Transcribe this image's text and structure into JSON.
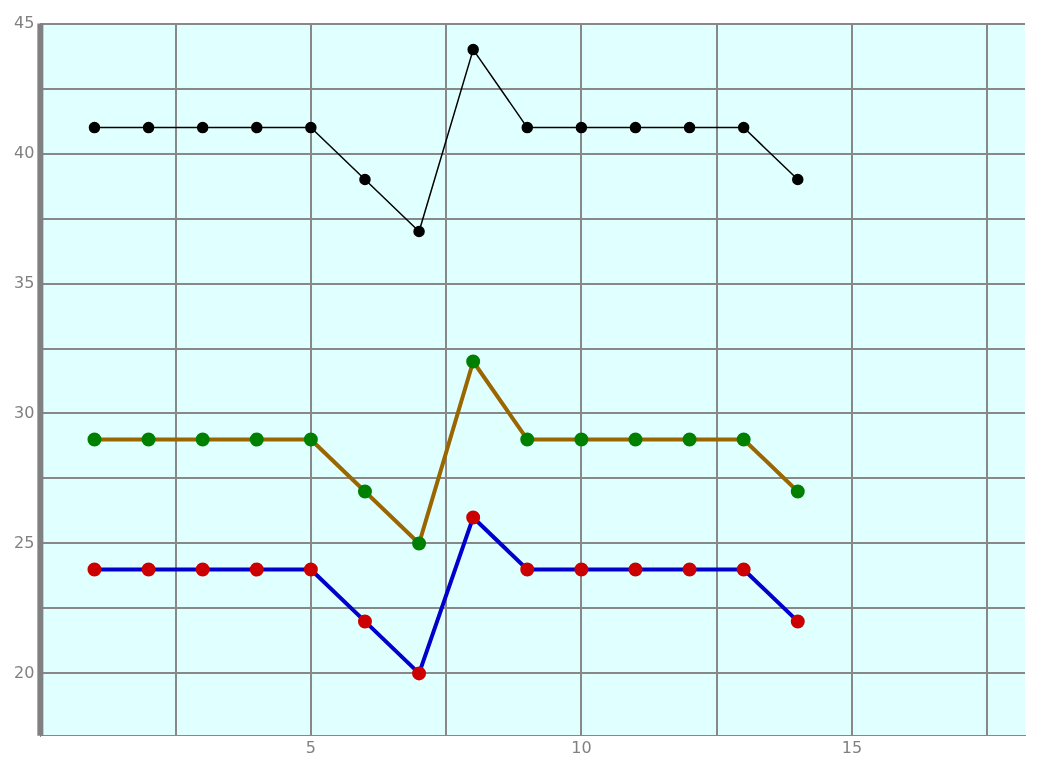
{
  "chart_data": {
    "type": "line",
    "x": [
      1,
      2,
      3,
      4,
      5,
      6,
      7,
      8,
      9,
      10,
      11,
      12,
      13,
      14
    ],
    "series": [
      {
        "color": "#000000",
        "colors": [
          "#000000",
          "#000000",
          "#000000",
          "#000000",
          "#000000",
          "#000000",
          "#000000",
          "#000000",
          "#000000",
          "#000000",
          "#000000",
          "#000000",
          "#000000",
          "#000000"
        ],
        "values": [
          41,
          41,
          41,
          41,
          41,
          39,
          37,
          44,
          41,
          41,
          41,
          41,
          41,
          39
        ]
      },
      {
        "color": "#996600",
        "colors": [
          "#008000",
          "#008000",
          "#008000",
          "#008000",
          "#008000",
          "#008000",
          "#008000",
          "#008000",
          "#008000",
          "#008000",
          "#008000",
          "#008000",
          "#008000",
          "#008000"
        ],
        "values": [
          29,
          29,
          29,
          29,
          29,
          27,
          25,
          32,
          29,
          29,
          29,
          29,
          29,
          27
        ]
      },
      {
        "color": "#0000cc",
        "colors": [
          "#cc0000",
          "#cc0000",
          "#cc0000",
          "#cc0000",
          "#cc0000",
          "#cc0000",
          "#cc0000",
          "#cc0000",
          "#cc0000",
          "#cc0000",
          "#cc0000",
          "#cc0000",
          "#cc0000",
          "#cc0000"
        ],
        "values": [
          24,
          24,
          24,
          24,
          24,
          22,
          20,
          26,
          24,
          24,
          24,
          24,
          24,
          22
        ]
      }
    ],
    "xlim": [
      0,
      18.2
    ],
    "xticks": [
      {
        "value": 2.5,
        "label": null
      },
      5,
      {
        "value": 7.5,
        "label": null
      },
      10,
      {
        "value": 12.5,
        "label": null
      },
      15,
      {
        "value": 17.5,
        "label": null
      }
    ],
    "ylim": [
      17.6,
      45
    ],
    "yticks": [
      20,
      {
        "value": 22.5,
        "label": null
      },
      25,
      {
        "value": 27.5,
        "label": null
      },
      30,
      {
        "value": 32.5,
        "label": null
      },
      35,
      {
        "value": 37.5,
        "label": null
      },
      40,
      {
        "value": 42.5,
        "label": null
      },
      45
    ],
    "grid": true,
    "legend": false,
    "marker": "circle",
    "line_style": "solid"
  }
}
